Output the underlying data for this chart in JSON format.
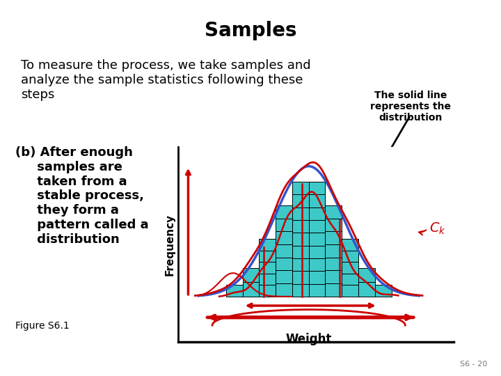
{
  "title": "Samples",
  "title_fontsize": 20,
  "title_fontweight": "bold",
  "body_text": "To measure the process, we take samples and\nanalyze the sample statistics following these\nsteps",
  "body_fontsize": 13,
  "item_b_lines": [
    "(b) After enough",
    "     samples are",
    "     taken from a",
    "     stable process,",
    "     they form a",
    "     pattern called a",
    "     distribution"
  ],
  "item_b_fontsize": 13,
  "annotation_text": "The solid line\nrepresents the\ndistribution",
  "annotation_fontsize": 10,
  "figure_label": "Figure S6.1",
  "figure_label_fontsize": 10,
  "page_number": "S6 - 20",
  "background_color": "#ffffff",
  "teal_color": "#3ec8c8",
  "red_color": "#cc0000",
  "blue_color": "#3355cc",
  "black_color": "#000000"
}
